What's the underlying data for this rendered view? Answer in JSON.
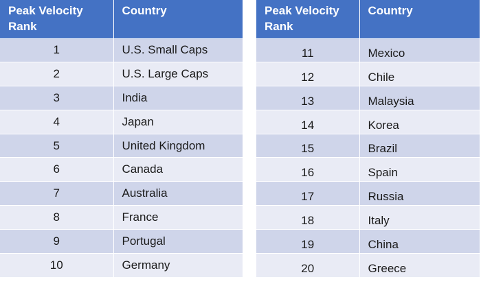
{
  "headers": {
    "rank": "Peak Velocity Rank",
    "country": "Country"
  },
  "colors": {
    "header_bg": "#4472c4",
    "row_odd": "#cfd5ea",
    "row_even": "#e9ebf5"
  },
  "left_rows": [
    {
      "rank": "1",
      "country": "U.S. Small Caps"
    },
    {
      "rank": "2",
      "country": "U.S. Large Caps"
    },
    {
      "rank": "3",
      "country": "India"
    },
    {
      "rank": "4",
      "country": "Japan"
    },
    {
      "rank": "5",
      "country": "United Kingdom"
    },
    {
      "rank": "6",
      "country": "Canada"
    },
    {
      "rank": "7",
      "country": "Australia"
    },
    {
      "rank": "8",
      "country": "France"
    },
    {
      "rank": "9",
      "country": "Portugal"
    },
    {
      "rank": "10",
      "country": "Germany"
    }
  ],
  "right_rows": [
    {
      "rank": "11",
      "country": "Mexico"
    },
    {
      "rank": "12",
      "country": "Chile"
    },
    {
      "rank": "13",
      "country": "Malaysia"
    },
    {
      "rank": "14",
      "country": "Korea"
    },
    {
      "rank": "15",
      "country": "Brazil"
    },
    {
      "rank": "16",
      "country": "Spain"
    },
    {
      "rank": "17",
      "country": "Russia"
    },
    {
      "rank": "18",
      "country": "Italy"
    },
    {
      "rank": "19",
      "country": "China"
    },
    {
      "rank": "20",
      "country": "Greece"
    }
  ]
}
